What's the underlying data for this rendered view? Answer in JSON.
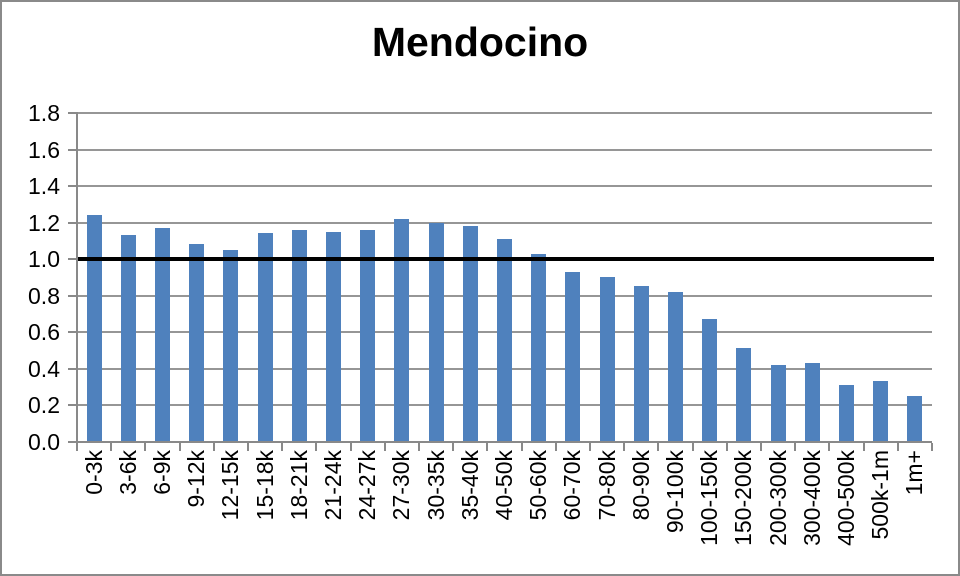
{
  "chart_data": {
    "type": "bar",
    "title": "Mendocino",
    "categories": [
      "0-3k",
      "3-6k",
      "6-9k",
      "9-12k",
      "12-15k",
      "15-18k",
      "18-21k",
      "21-24k",
      "24-27k",
      "27-30k",
      "30-35k",
      "35-40k",
      "40-50k",
      "50-60k",
      "60-70k",
      "70-80k",
      "80-90k",
      "90-100k",
      "100-150k",
      "150-200k",
      "200-300k",
      "300-400k",
      "400-500k",
      "500k-1m",
      "1m+"
    ],
    "values": [
      1.24,
      1.13,
      1.17,
      1.08,
      1.05,
      1.14,
      1.16,
      1.15,
      1.16,
      1.22,
      1.2,
      1.18,
      1.11,
      1.03,
      0.93,
      0.9,
      0.85,
      0.82,
      0.67,
      0.51,
      0.42,
      0.43,
      0.31,
      0.33,
      0.25
    ],
    "xlabel": "",
    "ylabel": "",
    "ylim": [
      0,
      1.8
    ],
    "ytick_step": 0.2,
    "ytick_labels": [
      "0.0",
      "0.2",
      "0.4",
      "0.6",
      "0.8",
      "1.0",
      "1.2",
      "1.4",
      "1.6",
      "1.8"
    ],
    "reference_line": {
      "value": 1.0,
      "color": "#000000"
    },
    "grid": true,
    "legend": "none",
    "bar_color": "#4F81BD",
    "gridline_color": "#969696",
    "axis_color": "#898989",
    "border_color": "#8a8a8a"
  }
}
